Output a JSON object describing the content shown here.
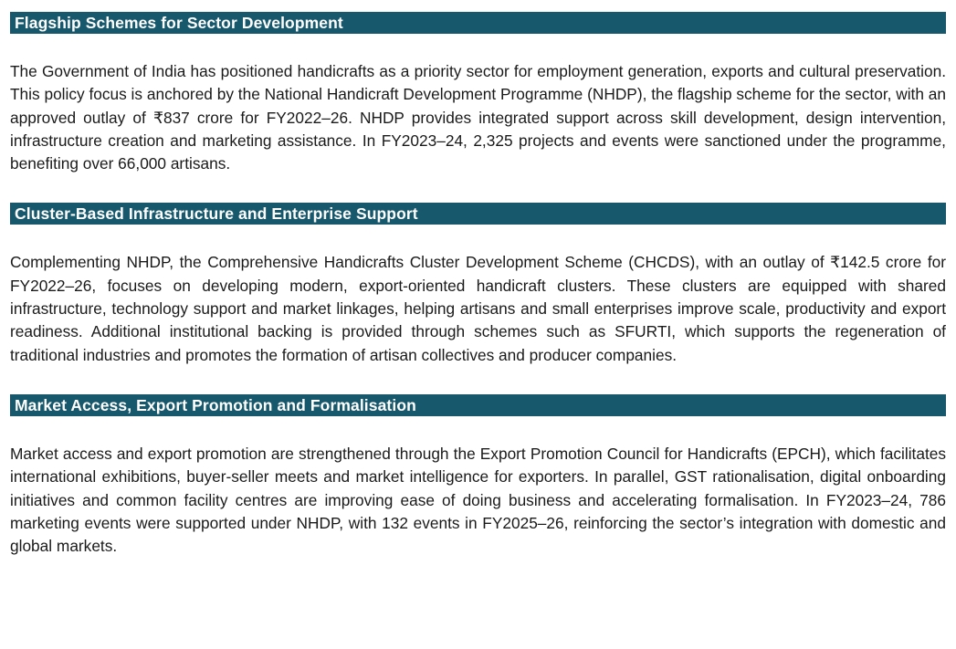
{
  "theme": {
    "header_bar_color": "#17586c",
    "header_text_color": "#ffffff",
    "body_text_color": "#1a1a1a",
    "page_background": "#ffffff"
  },
  "sections": [
    {
      "heading": "Flagship Schemes for Sector Development",
      "body": "The Government of India has positioned handicrafts as a priority sector for employment generation, exports and cultural preservation. This policy focus is anchored by the National Handicraft Development Programme (NHDP), the flagship scheme for the sector, with an approved outlay of ₹837 crore for FY2022–26. NHDP provides integrated support across skill development, design intervention, infrastructure creation and marketing assistance. In FY2023–24, 2,325 projects and events were sanctioned under the programme, benefiting over 66,000 artisans."
    },
    {
      "heading": "Cluster-Based Infrastructure and Enterprise Support",
      "body": "Complementing NHDP, the Comprehensive Handicrafts Cluster Development Scheme (CHCDS), with an outlay of ₹142.5 crore for FY2022–26, focuses on developing modern, export-oriented handicraft clusters. These clusters are equipped with shared infrastructure, technology support and market linkages, helping artisans and small enterprises improve scale, productivity and export readiness. Additional institutional backing is provided through schemes such as SFURTI, which supports the regeneration of traditional industries and promotes the formation of artisan collectives and producer companies."
    },
    {
      "heading": "Market Access, Export Promotion and Formalisation",
      "body": "Market access and export promotion are strengthened through the Export Promotion Council for Handicrafts (EPCH), which facilitates international exhibitions, buyer-seller meets and market intelligence for exporters. In parallel, GST rationalisation, digital onboarding initiatives and common facility centres are improving ease of doing business and accelerating formalisation. In FY2023–24, 786 marketing events were supported under NHDP, with 132 events in FY2025–26, reinforcing the sector’s integration with domestic and global markets."
    }
  ]
}
